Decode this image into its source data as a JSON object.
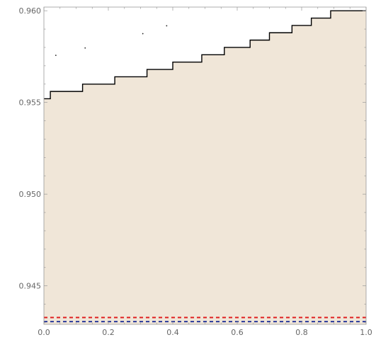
{
  "chart_data": {
    "type": "area",
    "title": "",
    "xlabel": "",
    "ylabel": "",
    "xlim": [
      0.0,
      1.0
    ],
    "ylim": [
      0.9429,
      0.9602
    ],
    "x_ticks": [
      0.0,
      0.2,
      0.4,
      0.6,
      0.8,
      1.0
    ],
    "x_tick_labels": [
      "0.0",
      "0.2",
      "0.4",
      "0.6",
      "0.8",
      "1.0"
    ],
    "y_ticks": [
      0.945,
      0.95,
      0.955,
      0.96
    ],
    "y_tick_labels": [
      "0.945",
      "0.950",
      "0.955",
      "0.960"
    ],
    "grid": false,
    "legend": "none",
    "series": [
      {
        "kind": "step-area",
        "fill_color": "#f0e6d8",
        "line_color": "#000000",
        "x": [
          0.0,
          0.017,
          0.02,
          0.12,
          0.22,
          0.32,
          0.4,
          0.49,
          0.56,
          0.64,
          0.7,
          0.77,
          0.83,
          0.89,
          1.0
        ],
        "y": [
          0.9552,
          0.9552,
          0.9556,
          0.956,
          0.9564,
          0.9568,
          0.9572,
          0.9576,
          0.958,
          0.9584,
          0.9588,
          0.9592,
          0.9596,
          0.96,
          0.96
        ]
      },
      {
        "kind": "dashed-line",
        "line_color": "#e02020",
        "x": [
          0.0,
          1.0
        ],
        "y": [
          0.94327,
          0.94327
        ]
      },
      {
        "kind": "dashed-line",
        "line_color": "#2a3a9a",
        "x": [
          0.0,
          1.0
        ],
        "y": [
          0.94305,
          0.94305
        ]
      }
    ],
    "scatter_points": [
      {
        "x": 0.037,
        "y": 0.95757
      },
      {
        "x": 0.128,
        "y": 0.95797
      },
      {
        "x": 0.307,
        "y": 0.95875
      },
      {
        "x": 0.381,
        "y": 0.95918
      }
    ]
  }
}
